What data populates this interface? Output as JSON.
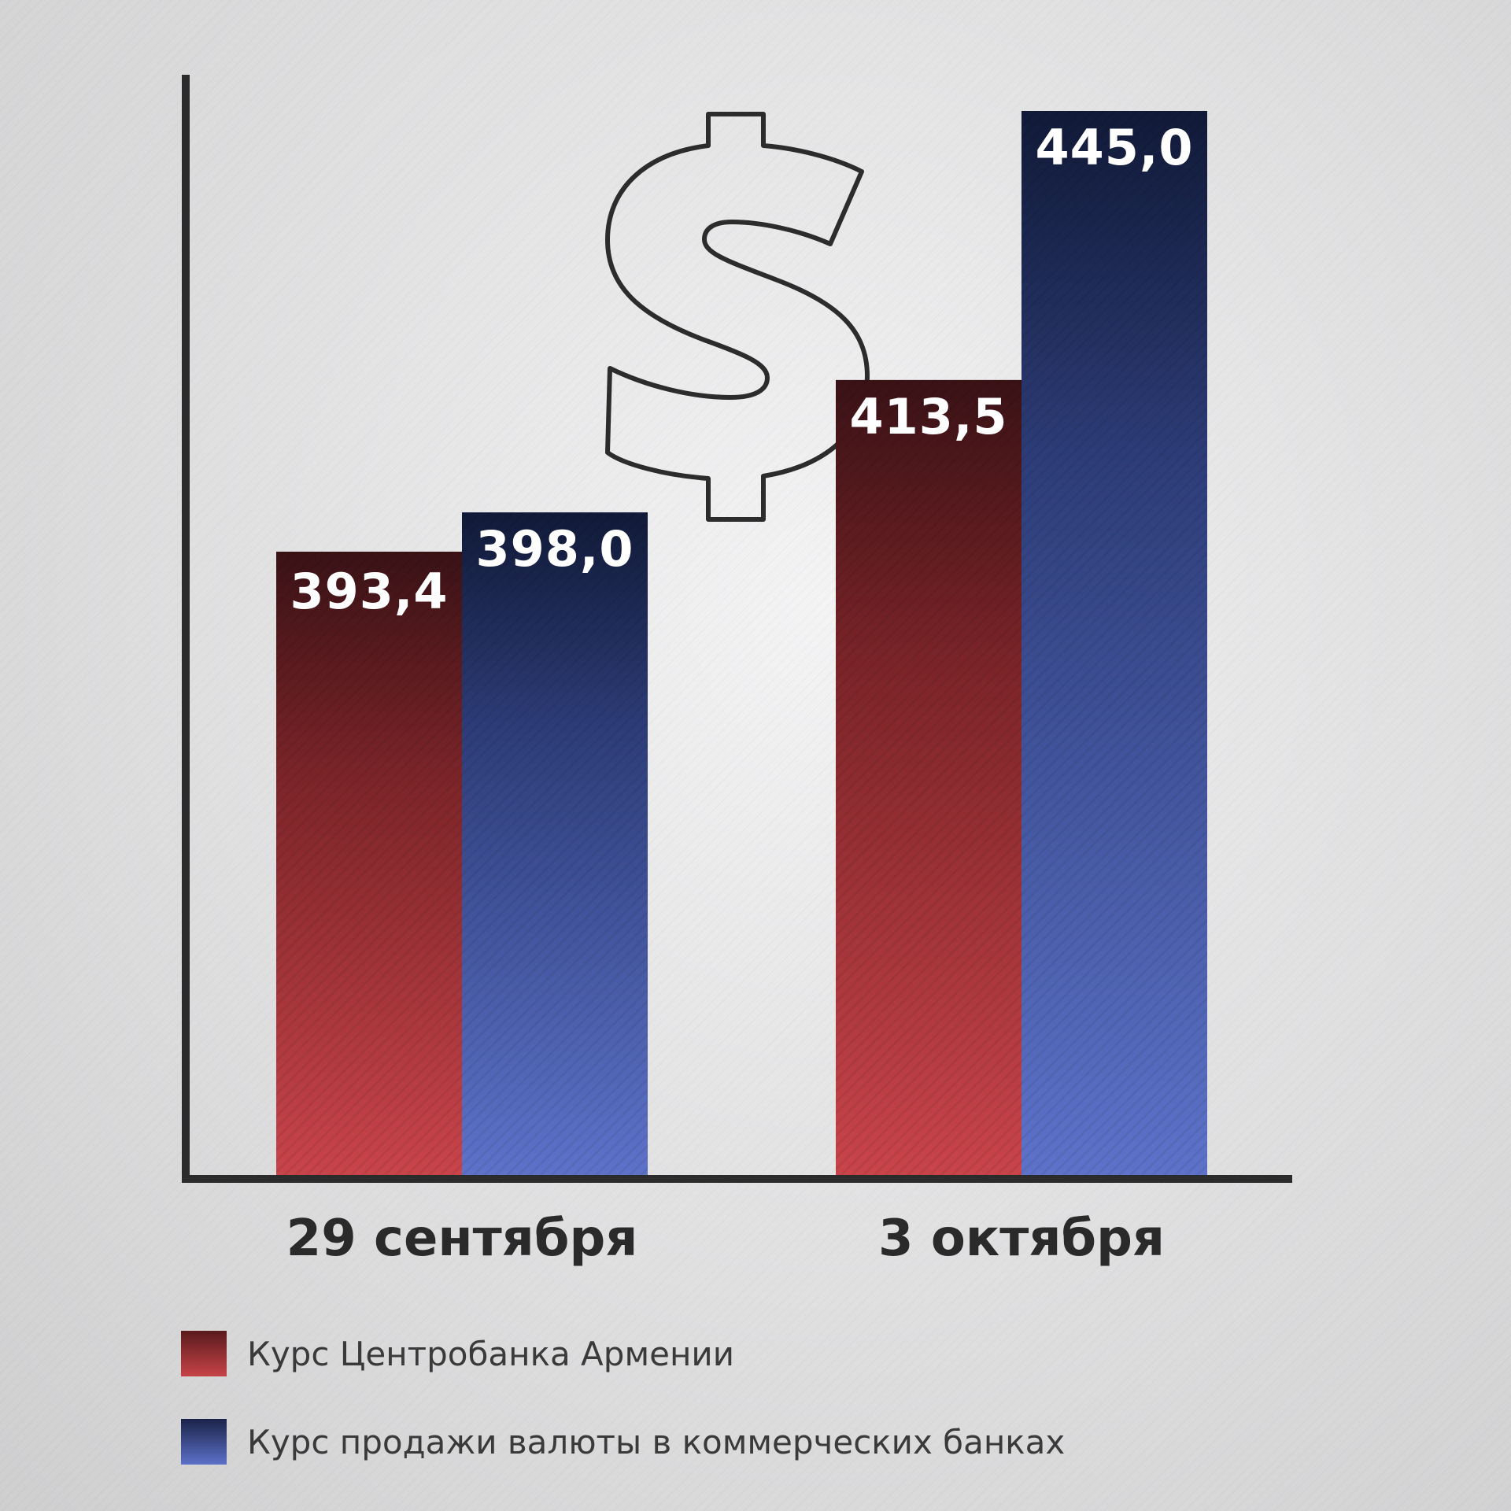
{
  "chart_data": {
    "type": "bar",
    "categories": [
      "29 сентября",
      "3 октября"
    ],
    "series": [
      {
        "name": "Курс Центробанка Армении",
        "values": [
          393.4,
          413.5
        ],
        "labels": [
          "393,4",
          "413,5"
        ],
        "color_top": "#3a1216",
        "color_bottom": "#c8444a"
      },
      {
        "name": "Курс продажи валюты в коммерческих банках",
        "values": [
          398.0,
          445.0
        ],
        "labels": [
          "398,0",
          "445,0"
        ],
        "color_top": "#111a38",
        "color_bottom": "#5d72c9"
      }
    ],
    "title": "",
    "xlabel": "",
    "ylabel": "",
    "grid": false,
    "legend_position": "bottom-left"
  },
  "decoration": {
    "icon": "dollar-icon"
  },
  "colors": {
    "axis": "#2b2b2b",
    "value_text": "#ffffff",
    "category_text": "#2a2a2a"
  }
}
